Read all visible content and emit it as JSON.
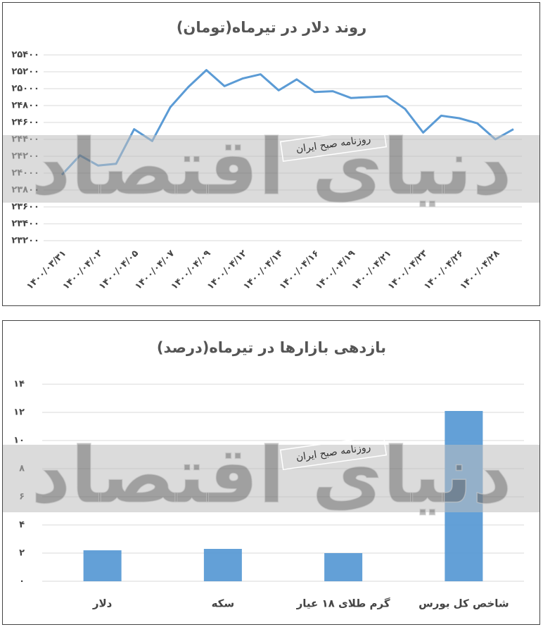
{
  "chart_data": [
    {
      "type": "line",
      "title": "روند دلار در تیرماه(تومان)",
      "watermark": "روزنامه صبح ایران",
      "watermark_logo": "دنیای اقتصاد",
      "categories": [
        "۱۴۰۰/۰۳/۳۱",
        null,
        "۱۴۰۰/۰۴/۰۲",
        null,
        "۱۴۰۰/۰۴/۰۵",
        null,
        "۱۴۰۰/۰۴/۰۷",
        null,
        "۱۴۰۰/۰۴/۰۹",
        null,
        "۱۴۰۰/۰۴/۱۲",
        null,
        "۱۴۰۰/۰۴/۱۴",
        null,
        "۱۴۰۰/۰۴/۱۶",
        null,
        "۱۴۰۰/۰۴/۱۹",
        null,
        "۱۴۰۰/۰۴/۲۱",
        null,
        "۱۴۰۰/۰۴/۲۳",
        null,
        "۱۴۰۰/۰۴/۲۶",
        null,
        "۱۴۰۰/۰۴/۲۸",
        null
      ],
      "values": [
        23980,
        24210,
        24090,
        24110,
        24520,
        24380,
        24780,
        25020,
        25220,
        25030,
        25120,
        25170,
        24980,
        25110,
        24960,
        24970,
        24890,
        24900,
        24910,
        24760,
        24480,
        24680,
        24650,
        24590,
        24400,
        24520
      ],
      "color": "#5b9bd5",
      "ylim": [
        23200,
        25400
      ],
      "yticks": [
        {
          "value": 23200,
          "label": "۲۳۲۰۰"
        },
        {
          "value": 23400,
          "label": "۲۳۴۰۰"
        },
        {
          "value": 23600,
          "label": "۲۳۶۰۰"
        },
        {
          "value": 23800,
          "label": "۲۳۸۰۰"
        },
        {
          "value": 24000,
          "label": "۲۴۰۰۰"
        },
        {
          "value": 24200,
          "label": "۲۴۲۰۰"
        },
        {
          "value": 24400,
          "label": "۲۴۴۰۰"
        },
        {
          "value": 24600,
          "label": "۲۴۶۰۰"
        },
        {
          "value": 24800,
          "label": "۲۴۸۰۰"
        },
        {
          "value": 25000,
          "label": "۲۵۰۰۰"
        },
        {
          "value": 25200,
          "label": "۲۵۲۰۰"
        },
        {
          "value": 25400,
          "label": "۲۵۴۰۰"
        }
      ],
      "grid": true
    },
    {
      "type": "bar",
      "title": "بازدهی بازارها در تیرماه(درصد)",
      "watermark": "روزنامه صبح ایران",
      "watermark_logo": "دنیای اقتصاد",
      "categories": [
        "دلار",
        "سکه",
        "گرم طلای ۱۸ عیار",
        "شاخص کل بورس"
      ],
      "values": [
        2.2,
        2.3,
        2.0,
        12.1
      ],
      "color": "#5b9bd5",
      "ylim": [
        0,
        14
      ],
      "yticks": [
        {
          "value": 0,
          "label": "۰"
        },
        {
          "value": 2,
          "label": "۲"
        },
        {
          "value": 4,
          "label": "۴"
        },
        {
          "value": 6,
          "label": "۶"
        },
        {
          "value": 8,
          "label": "۸"
        },
        {
          "value": 10,
          "label": "۱۰"
        },
        {
          "value": 12,
          "label": "۱۲"
        },
        {
          "value": 14,
          "label": "۱۴"
        }
      ],
      "grid": true
    }
  ]
}
